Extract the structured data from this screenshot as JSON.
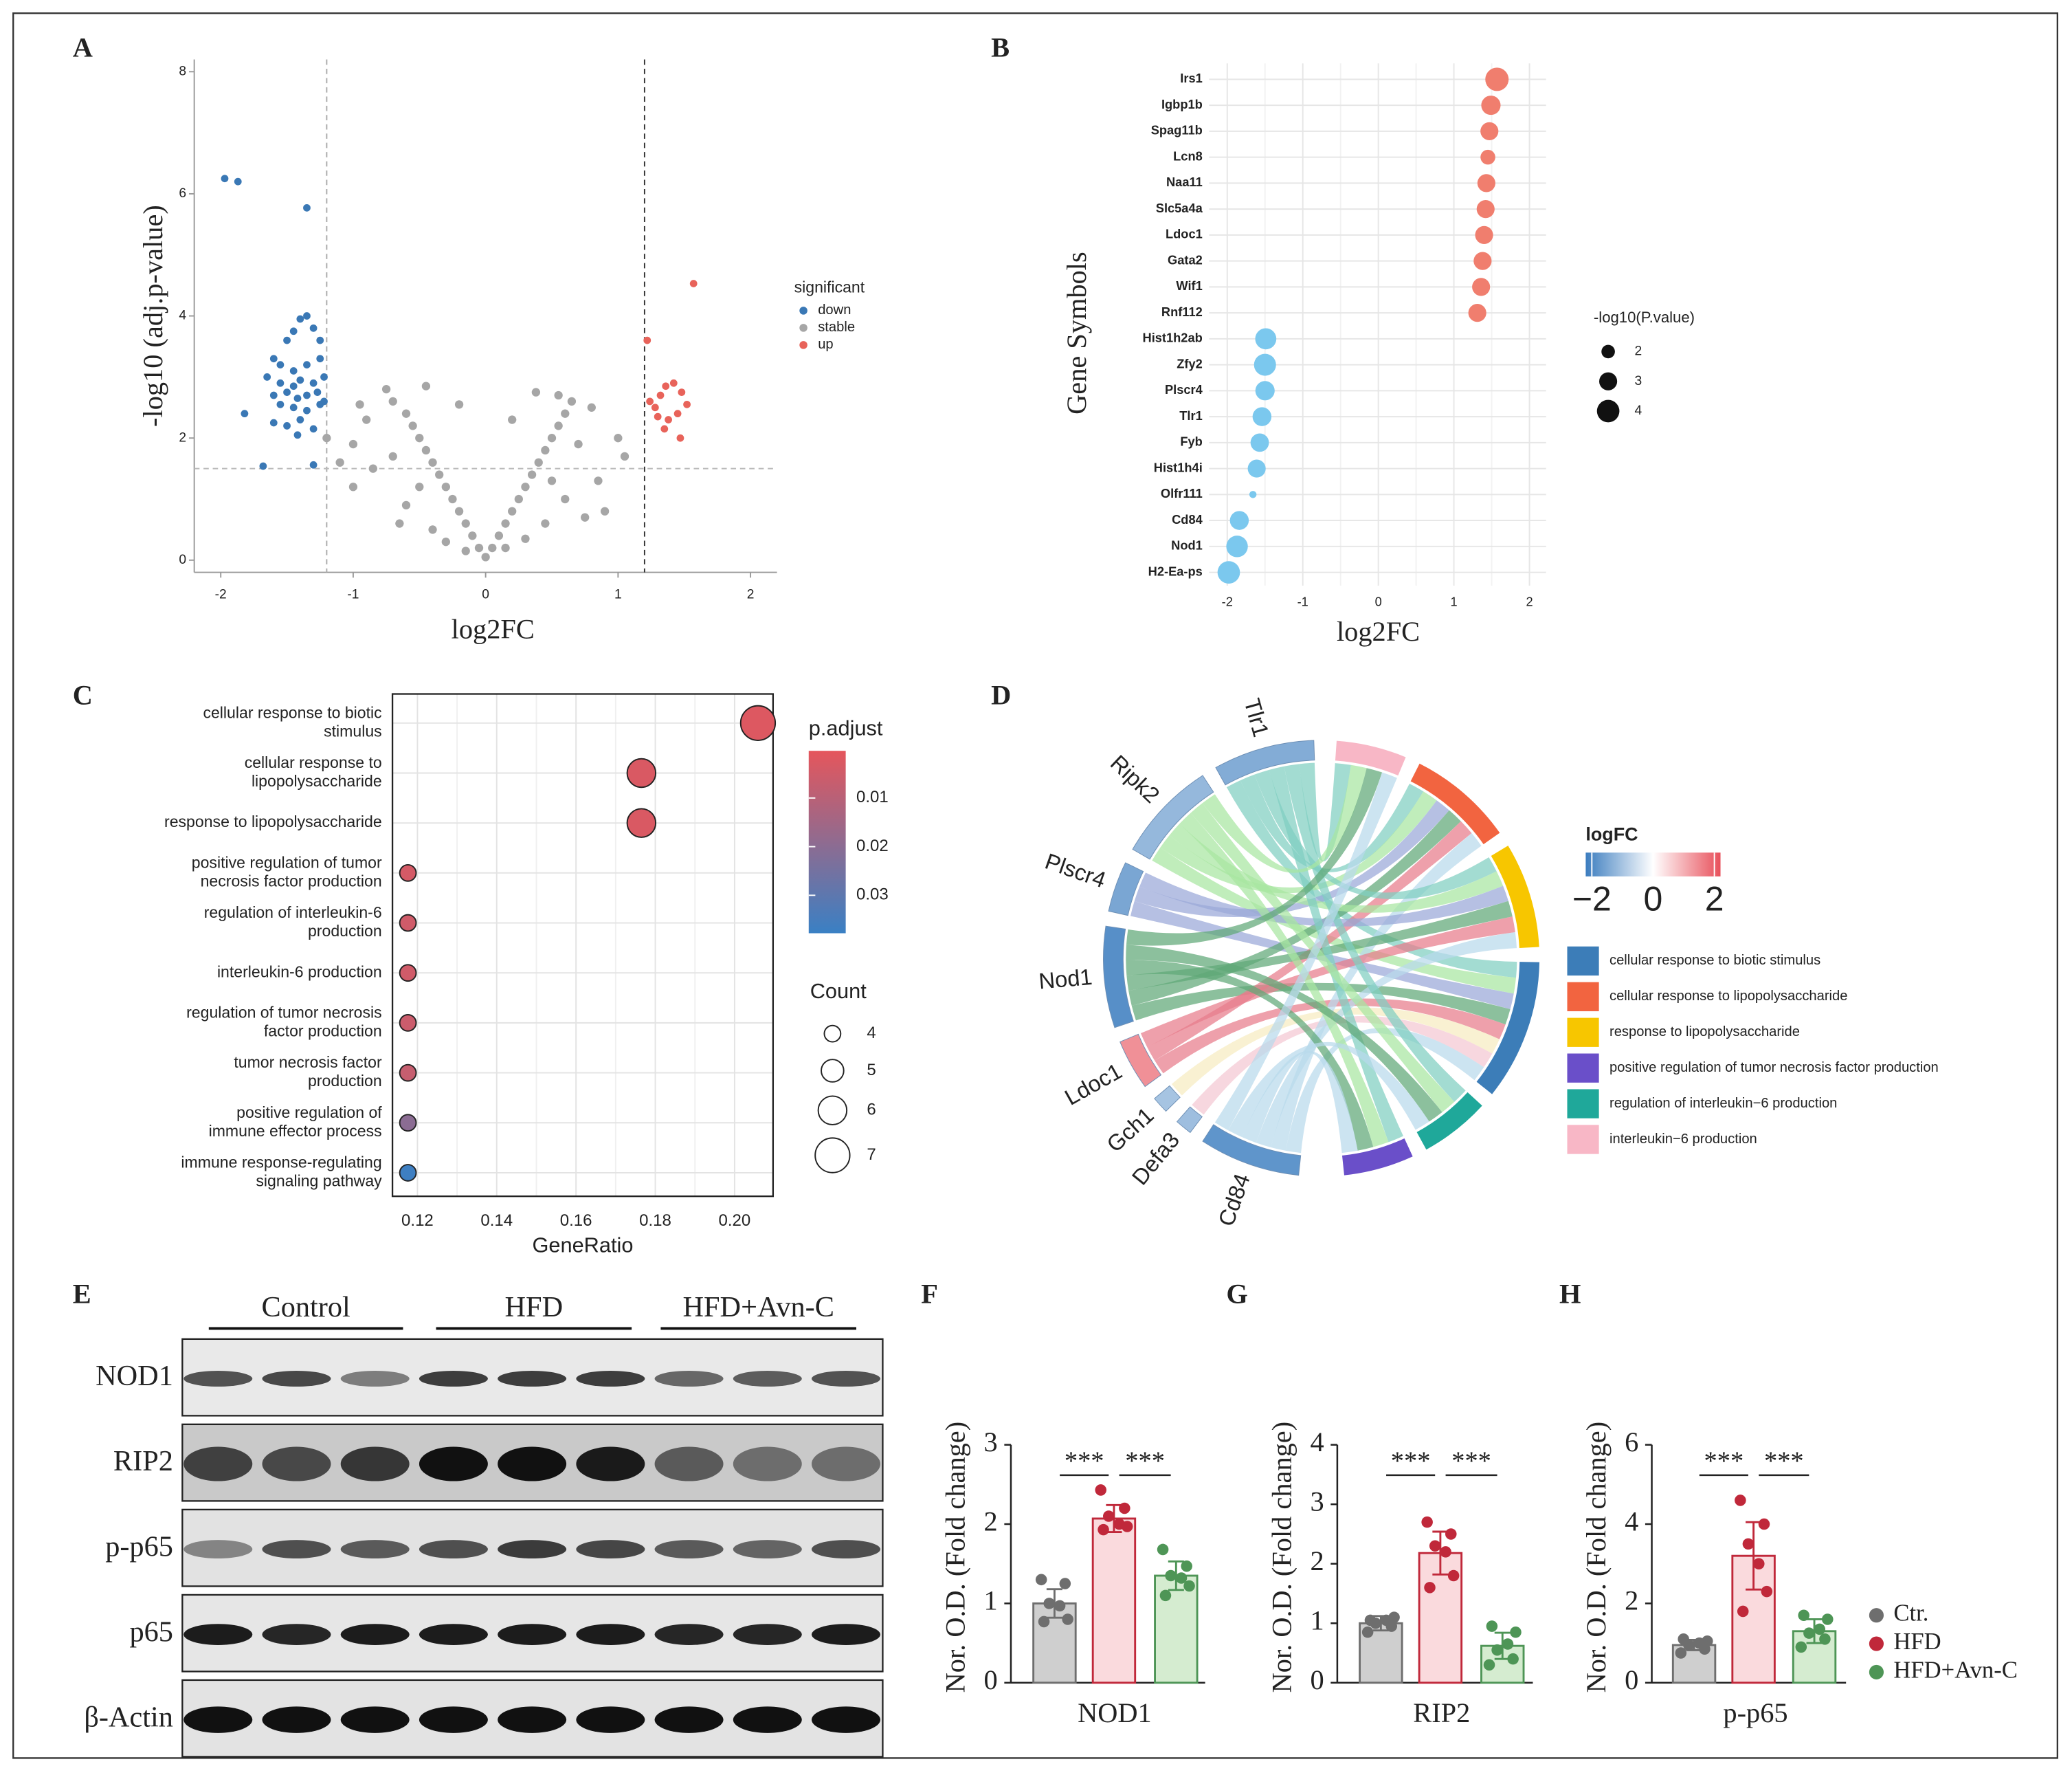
{
  "panel_labels": [
    "A",
    "B",
    "C",
    "D",
    "E",
    "F",
    "G",
    "H"
  ],
  "chart_data": [
    {
      "type": "scatter",
      "xlabel": "log2FC",
      "ylabel": "-log10 (adj.p-value)",
      "xlim": [
        -2.2,
        2.2
      ],
      "ylim": [
        -0.2,
        8.2
      ],
      "xticks": [
        -2,
        -1,
        0,
        1,
        2
      ],
      "yticks": [
        0,
        2,
        4,
        6,
        8
      ],
      "vlines": [
        -1.2,
        1.2
      ],
      "hline": 1.5,
      "legend_title": "significant",
      "series": [
        {
          "name": "down",
          "color": "#3A78B5",
          "x": [
            -1.97,
            -1.87,
            -1.35,
            -1.4,
            -1.35,
            -1.45,
            -1.3,
            -1.5,
            -1.25,
            -1.6,
            -1.55,
            -1.45,
            -1.35,
            -1.25,
            -1.65,
            -1.55,
            -1.45,
            -1.4,
            -1.3,
            -1.22,
            -1.6,
            -1.5,
            -1.42,
            -1.35,
            -1.27,
            -1.55,
            -1.45,
            -1.35,
            -1.25,
            -1.6,
            -1.5,
            -1.4,
            -1.3,
            -1.82,
            -1.68,
            -1.3,
            -1.42,
            -1.22
          ],
          "values": [
            6.25,
            6.2,
            5.77,
            3.95,
            4.0,
            3.75,
            3.8,
            3.6,
            3.6,
            3.3,
            3.2,
            3.1,
            3.2,
            3.3,
            3.0,
            2.9,
            2.85,
            2.95,
            2.9,
            3.0,
            2.7,
            2.75,
            2.65,
            2.7,
            2.75,
            2.55,
            2.5,
            2.45,
            2.55,
            2.25,
            2.2,
            2.3,
            2.15,
            2.4,
            1.54,
            1.56,
            2.05,
            2.6
          ]
        },
        {
          "name": "stable",
          "color": "#A6A6A6",
          "x": [
            0,
            -0.05,
            0.05,
            -0.1,
            0.1,
            -0.15,
            0.15,
            -0.2,
            0.2,
            -0.25,
            0.25,
            -0.3,
            0.3,
            -0.35,
            0.35,
            -0.4,
            0.4,
            -0.45,
            0.45,
            -0.5,
            0.5,
            -0.55,
            0.55,
            -0.6,
            0.6,
            -0.7,
            0.65,
            -0.75,
            0.38,
            -0.9,
            0.8,
            -1.0,
            1.0,
            -1.1,
            1.05,
            -0.85,
            0.85,
            -0.6,
            0.6,
            -0.4,
            0.45,
            -0.7,
            0.7,
            -1.0,
            0.9,
            -0.3,
            0.3,
            -0.5,
            0.5,
            -1.2,
            -0.2,
            0.2,
            -0.65,
            0.75,
            -0.95,
            0.15,
            -0.15,
            0.55,
            -0.45
          ],
          "values": [
            0.05,
            0.2,
            0.2,
            0.4,
            0.4,
            0.6,
            0.6,
            0.8,
            0.8,
            1.0,
            1.0,
            1.2,
            1.2,
            1.4,
            1.4,
            1.6,
            1.6,
            1.8,
            1.8,
            2.0,
            2.0,
            2.2,
            2.2,
            2.4,
            2.4,
            2.6,
            2.6,
            2.8,
            2.75,
            2.3,
            2.5,
            1.9,
            2.0,
            1.6,
            1.7,
            1.5,
            1.3,
            0.9,
            1.0,
            0.5,
            0.6,
            1.7,
            1.9,
            1.2,
            0.8,
            0.3,
            0.35,
            1.2,
            1.3,
            2.0,
            2.55,
            2.3,
            0.6,
            0.7,
            2.55,
            0.2,
            0.15,
            2.7,
            2.85
          ]
        },
        {
          "name": "up",
          "color": "#E8635A",
          "x": [
            1.57,
            1.22,
            1.24,
            1.28,
            1.32,
            1.36,
            1.42,
            1.48,
            1.3,
            1.38,
            1.45,
            1.35,
            1.47,
            1.52
          ],
          "values": [
            4.53,
            3.6,
            2.6,
            2.5,
            2.7,
            2.85,
            2.9,
            2.75,
            2.35,
            2.3,
            2.4,
            2.15,
            2.0,
            2.55
          ]
        }
      ]
    },
    {
      "type": "dot",
      "xlabel": "log2FC",
      "ylabel": "Gene Symbols",
      "xlim": [
        -2.24,
        2.22
      ],
      "xticks": [
        -2,
        -1,
        0,
        1,
        2
      ],
      "grid": true,
      "colors": [
        "#7BC8EE",
        "#F07E6E"
      ],
      "categories": [
        "Irs1",
        "Igbp1b",
        "Spag11b",
        "Lcn8",
        "Naa11",
        "Slc5a4a",
        "Ldoc1",
        "Gata2",
        "Wif1",
        "Rnf112",
        "Hist1h2ab",
        "Zfy2",
        "Plscr4",
        "Tlr1",
        "Fyb",
        "Hist1h4i",
        "Olfr111",
        "Cd84",
        "Nod1",
        "H2-Ea-ps"
      ],
      "values": [
        1.57,
        1.49,
        1.47,
        1.45,
        1.43,
        1.42,
        1.4,
        1.38,
        1.36,
        1.31,
        -1.49,
        -1.5,
        -1.5,
        -1.54,
        -1.57,
        -1.61,
        -1.66,
        -1.84,
        -1.87,
        -1.98
      ],
      "sizes": [
        4.2,
        3.3,
        3.0,
        2.3,
        3.0,
        3.0,
        3.0,
        3.0,
        3.0,
        3.0,
        3.7,
        3.9,
        3.3,
        3.2,
        3.1,
        3.0,
        0.6,
        3.2,
        3.8,
        4.0
      ],
      "size_title": "-log10(P.value)",
      "size_legend": [
        2,
        3,
        4
      ]
    },
    {
      "type": "bubble",
      "xlabel": "GeneRatio",
      "xlim": [
        0.1137,
        0.2097
      ],
      "xticks": [
        0.12,
        0.14,
        0.16,
        0.18,
        {
          "value": 0.2,
          "label": "0.20"
        }
      ],
      "grid": true,
      "categories": [
        [
          "cellular response to biotic",
          "stimulus"
        ],
        [
          "cellular response to",
          "lipopolysaccharide"
        ],
        [
          "response to lipopolysaccharide"
        ],
        [
          "positive regulation of tumor",
          "necrosis factor production"
        ],
        [
          "regulation of interleukin-6",
          "production"
        ],
        [
          "interleukin-6 production"
        ],
        [
          "regulation of tumor necrosis",
          "factor production"
        ],
        [
          "tumor necrosis factor",
          "production"
        ],
        [
          "positive regulation of",
          "immune effector process"
        ],
        [
          "immune response-regulating",
          "signaling pathway"
        ]
      ],
      "values": [
        0.2059,
        0.1765,
        0.1765,
        0.1176,
        0.1176,
        0.1176,
        0.1176,
        0.1176,
        0.1176,
        0.1176
      ],
      "counts": [
        7,
        6,
        6,
        4,
        4,
        4,
        4,
        4,
        4,
        4
      ],
      "p_adjust": [
        0.002,
        0.003,
        0.003,
        0.004,
        0.005,
        0.005,
        0.006,
        0.007,
        0.02,
        0.037
      ],
      "color_title": "p.adjust",
      "clim": [
        0.0003,
        0.0378
      ],
      "colorbar_ticks": [
        0.01,
        0.02,
        0.03
      ],
      "color_scale": [
        "#E5565C",
        "#3A80C4"
      ],
      "size_title": "Count",
      "size_legend": [
        4,
        5,
        6,
        7
      ]
    },
    {
      "type": "chord",
      "genes": [
        "Tlr1",
        "Ripk2",
        "Plscr4",
        "Nod1",
        "Ldoc1",
        "Gch1",
        "Defa3",
        "Cd84"
      ],
      "logfc": [
        -1.4,
        -1.2,
        -1.5,
        -1.9,
        1.4,
        -1.0,
        -1.1,
        -1.8
      ],
      "gene_link_colors": [
        "#7FCFC0",
        "#A8E6A1",
        "#9AA8D8",
        "#5FA877",
        "#E87C8A",
        "#F7EBC0",
        "#F4C7D3",
        "#B9D9EC"
      ],
      "terms": [
        "cellular response to biotic stimulus",
        "cellular response to lipopolysaccharide",
        "response to lipopolysaccharide",
        "positive regulation of tumor necrosis factor production",
        "regulation of interleukin−6 production",
        "interleukin−6 production"
      ],
      "terms_colors": [
        "#3C7DB8",
        "#F26440",
        "#F7C600",
        "#6A4FC9",
        "#1FA89A",
        "#F8B7C6"
      ],
      "links": [
        [
          0,
          0
        ],
        [
          1,
          0
        ],
        [
          2,
          0
        ],
        [
          3,
          0
        ],
        [
          4,
          0
        ],
        [
          5,
          0
        ],
        [
          6,
          0
        ],
        [
          7,
          0
        ],
        [
          0,
          1
        ],
        [
          1,
          1
        ],
        [
          2,
          1
        ],
        [
          3,
          1
        ],
        [
          4,
          1
        ],
        [
          7,
          1
        ],
        [
          0,
          2
        ],
        [
          1,
          2
        ],
        [
          2,
          2
        ],
        [
          3,
          2
        ],
        [
          4,
          2
        ],
        [
          7,
          2
        ],
        [
          0,
          3
        ],
        [
          1,
          3
        ],
        [
          3,
          3
        ],
        [
          7,
          3
        ],
        [
          0,
          4
        ],
        [
          1,
          4
        ],
        [
          3,
          4
        ],
        [
          7,
          4
        ],
        [
          0,
          5
        ],
        [
          1,
          5
        ],
        [
          3,
          5
        ],
        [
          7,
          5
        ]
      ],
      "colorbar_title": "logFC",
      "clim": [
        -2.2,
        2.2
      ],
      "colorbar_ticks": [
        {
          "value": -2,
          "label": "−2"
        },
        0,
        2
      ],
      "colorbar_colors": [
        "#3C7DBF",
        "#FFFFFF",
        "#E8505B"
      ]
    },
    {
      "type": "bar",
      "xlabel": "NOD1",
      "ylabel": "Nor. O.D.  (Fold change)",
      "ylim": [
        0,
        3
      ],
      "yticks": [
        0,
        1,
        2,
        3
      ],
      "values": [
        1.0,
        2.07,
        1.35
      ],
      "errors": [
        0.18,
        0.17,
        0.18
      ],
      "points": [
        [
          1.3,
          1.25,
          1.0,
          0.97,
          0.8,
          0.77
        ],
        [
          2.43,
          2.2,
          2.1,
          2.0,
          1.97,
          1.93
        ],
        [
          1.68,
          1.47,
          1.35,
          1.32,
          1.22,
          1.1
        ]
      ],
      "annotations": [
        {
          "text": "***",
          "between": [
            0,
            1
          ]
        },
        {
          "text": "***",
          "between": [
            1,
            2
          ]
        }
      ]
    },
    {
      "type": "bar",
      "xlabel": "RIP2",
      "ylabel": "Nor. O.D.  (Fold change)",
      "ylim": [
        0,
        4
      ],
      "yticks": [
        0,
        1,
        2,
        3,
        4
      ],
      "values": [
        1.0,
        2.18,
        0.62
      ],
      "errors": [
        0.12,
        0.36,
        0.22
      ],
      "points": [
        [
          0.85,
          0.95,
          1.0,
          1.05,
          1.1,
          1.05
        ],
        [
          2.7,
          2.5,
          2.3,
          2.2,
          1.8,
          1.6
        ],
        [
          0.3,
          0.4,
          0.55,
          0.65,
          0.85,
          0.95
        ]
      ],
      "annotations": [
        {
          "text": "***",
          "between": [
            0,
            1
          ]
        },
        {
          "text": "***",
          "between": [
            1,
            2
          ]
        }
      ]
    },
    {
      "type": "bar",
      "xlabel": "p-p65",
      "ylabel": "Nor. O.D.  (Fold change)",
      "ylim": [
        0,
        6
      ],
      "yticks": [
        0,
        2,
        4,
        6
      ],
      "values": [
        0.95,
        3.2,
        1.3
      ],
      "errors": [
        0.13,
        0.85,
        0.3
      ],
      "points": [
        [
          0.75,
          0.85,
          0.95,
          1.0,
          1.05,
          1.1
        ],
        [
          4.6,
          4.0,
          3.5,
          3.0,
          2.3,
          1.8
        ],
        [
          0.9,
          1.1,
          1.25,
          1.35,
          1.6,
          1.7
        ]
      ],
      "annotations": [
        {
          "text": "***",
          "between": [
            0,
            1
          ]
        },
        {
          "text": "***",
          "between": [
            1,
            2
          ]
        }
      ]
    }
  ],
  "legend": {
    "names": [
      "Ctr.",
      "HFD",
      "HFD+Avn-C"
    ],
    "colors": [
      "#6E6E6E",
      "#C0283A",
      "#4E9556"
    ],
    "fills": [
      "#CFCFCF",
      "#FADADD",
      "#D5ECD0"
    ]
  },
  "blot": {
    "groups": [
      "Control",
      "HFD",
      "HFD+Avn-C"
    ],
    "rows": [
      "NOD1",
      "RIP2",
      "p-p65",
      "p65",
      "β-Actin"
    ]
  }
}
